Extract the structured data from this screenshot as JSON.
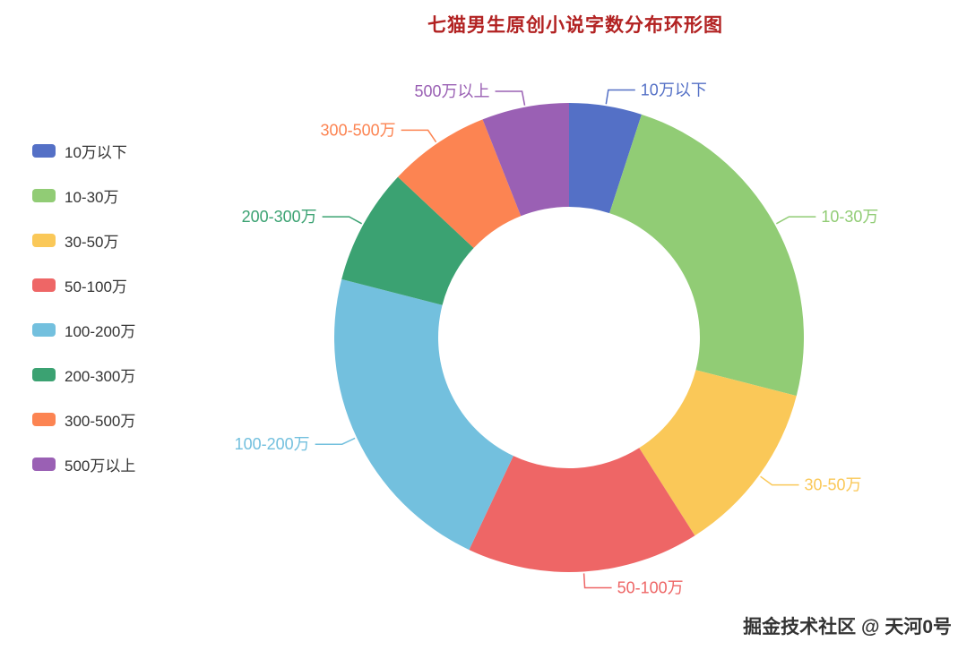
{
  "title": "七猫男生原创小说字数分布环形图",
  "watermark": "掘金技术社区 @ 天河0号",
  "colors": {
    "title_text": "#b22222",
    "legend_text": "#333333",
    "watermark_text": "#333333",
    "background": "#ffffff"
  },
  "legend": {
    "position": "left"
  },
  "chart_data": {
    "type": "pie",
    "variant": "donut",
    "title": "七猫男生原创小说字数分布环形图",
    "categories": [
      "10万以下",
      "10-30万",
      "30-50万",
      "50-100万",
      "100-200万",
      "200-300万",
      "300-500万",
      "500万以上"
    ],
    "values": [
      5,
      24,
      12,
      16,
      22,
      8,
      7,
      6
    ],
    "value_unit": "percent (estimated from arc angles, no numeric labels shown)",
    "colors": [
      "#5470c6",
      "#91cc75",
      "#fac858",
      "#ee6666",
      "#73c0de",
      "#3ba272",
      "#fc8452",
      "#9a60b4"
    ],
    "start_angle_deg": 0,
    "direction": "clockwise",
    "inner_radius_ratio": 0.56,
    "labels": "outside, category name only, colored like slice, with leader lines",
    "legend_position": "left",
    "grid": false
  }
}
